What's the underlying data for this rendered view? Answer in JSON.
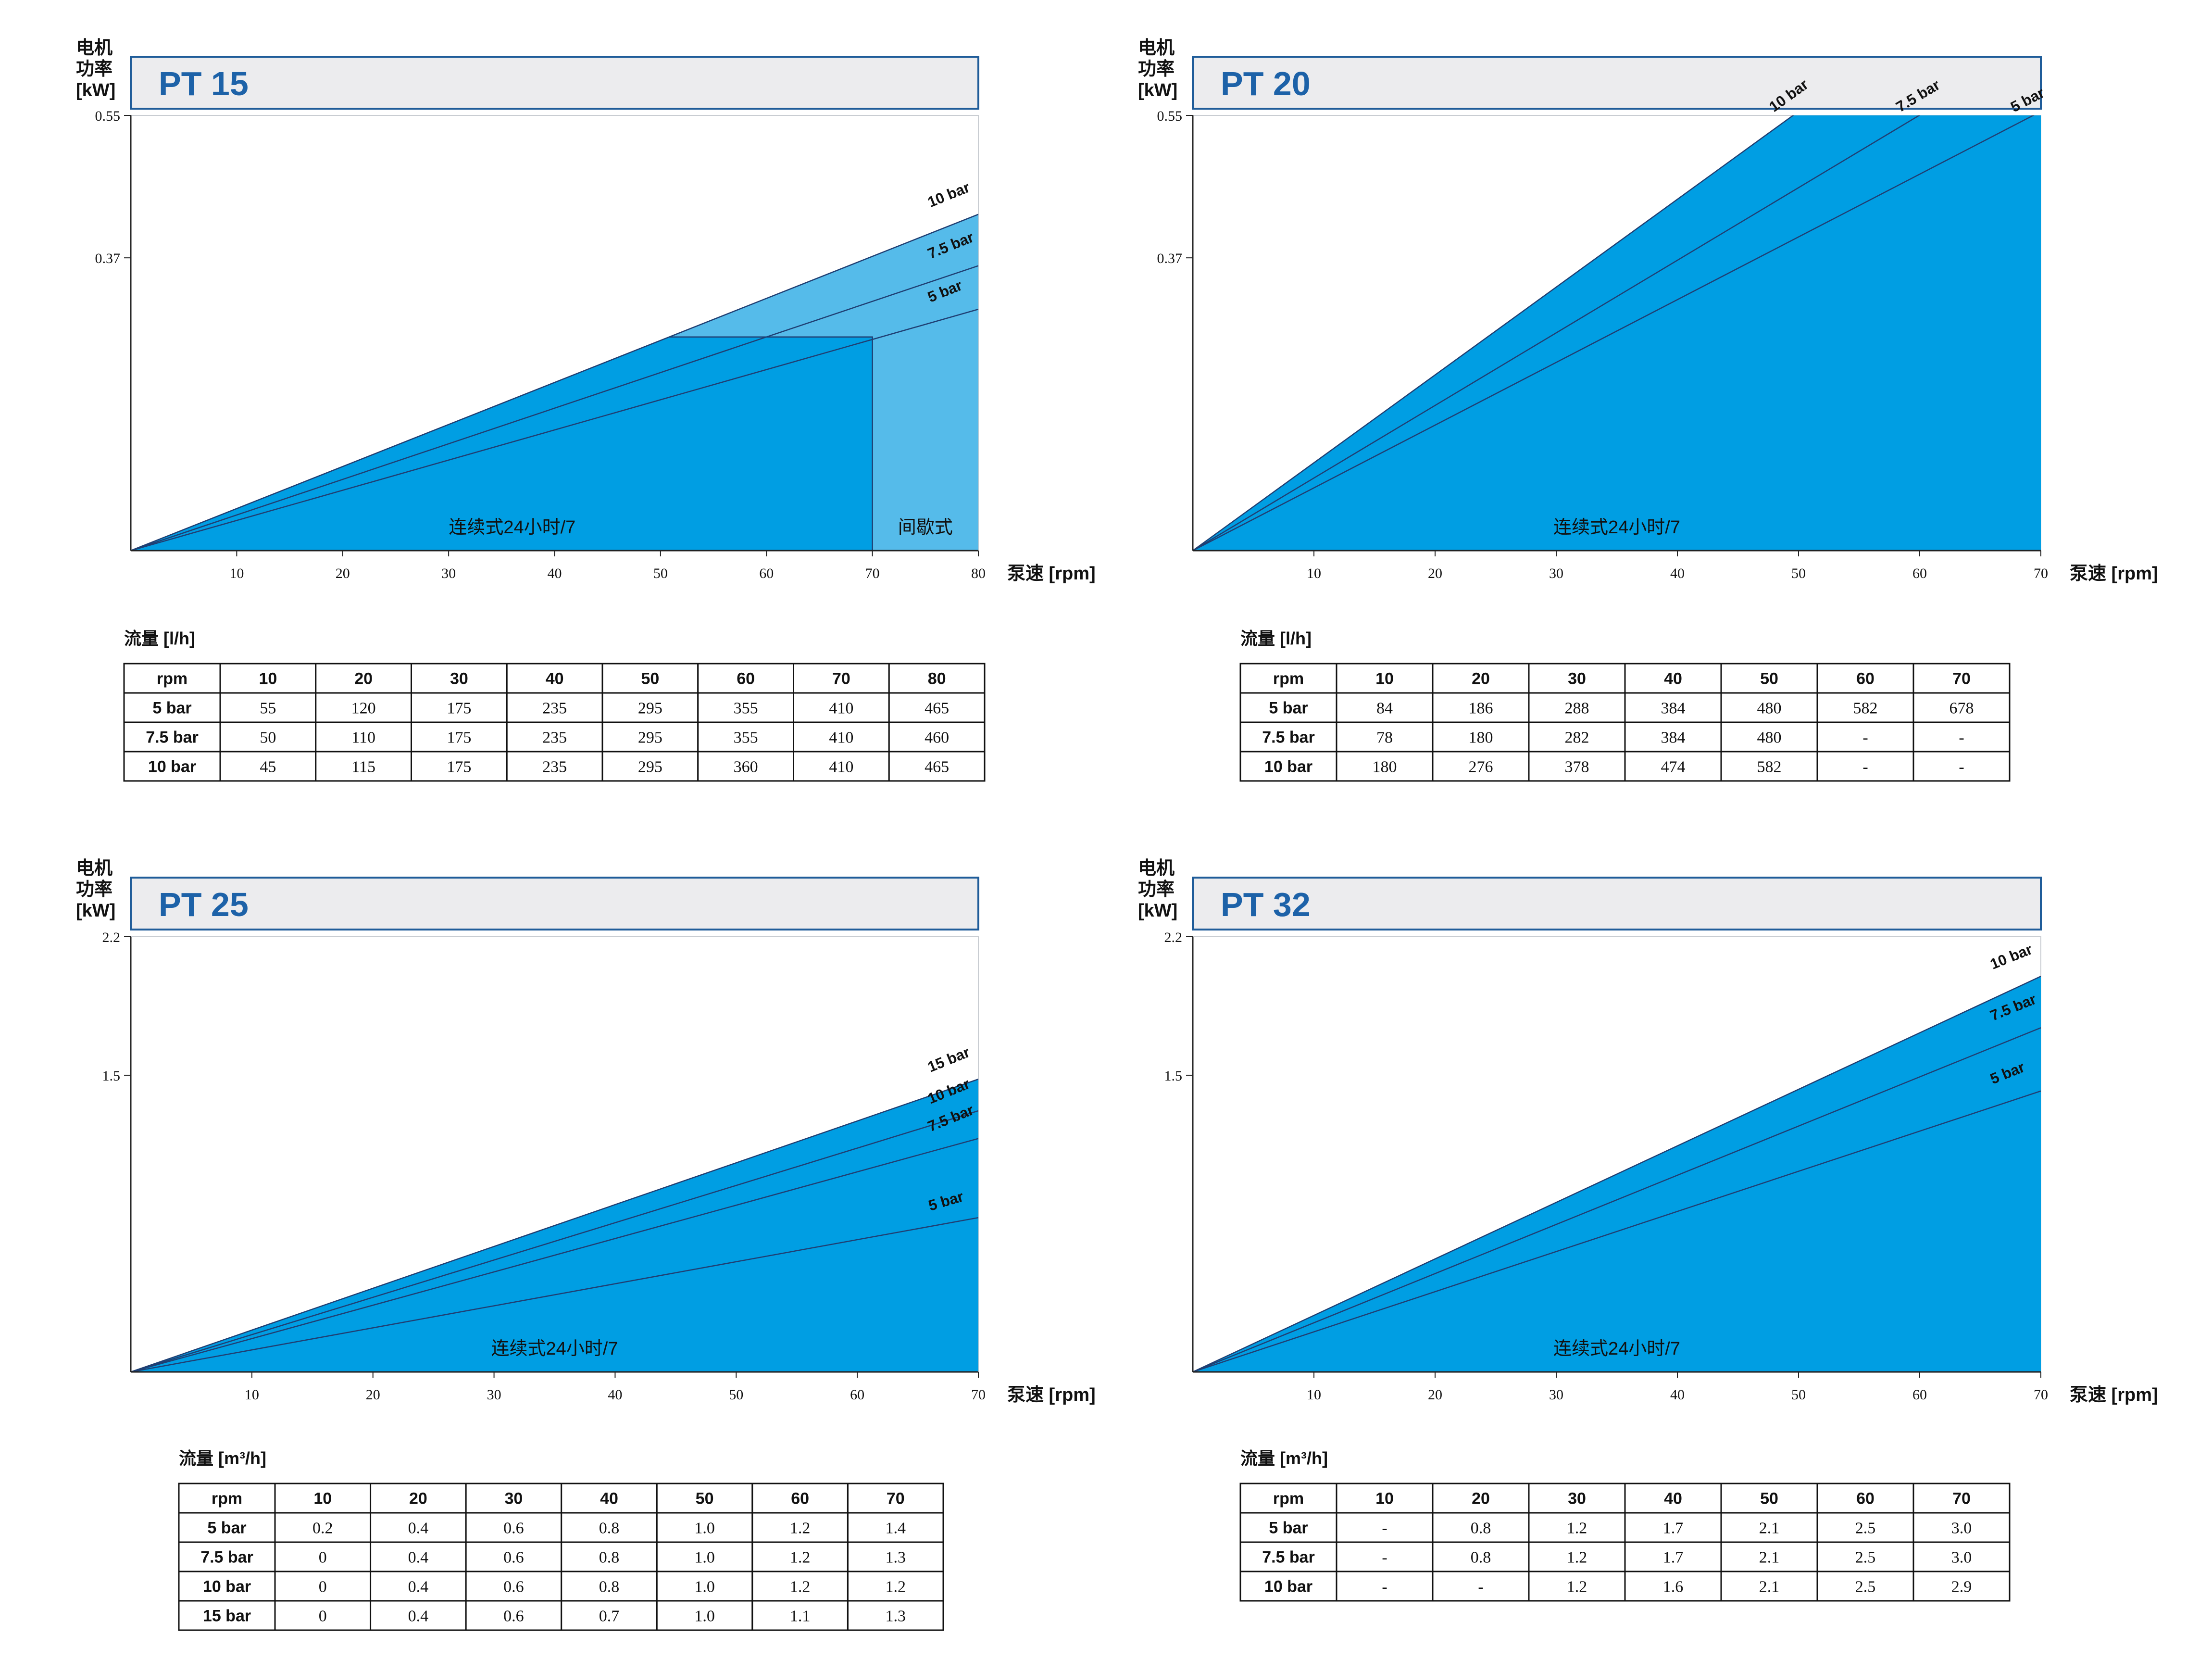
{
  "colors": {
    "fill_main": "#009ee3",
    "fill_light": "#55bbea",
    "line": "#1f3f73",
    "title_border": "#1f5c99",
    "title_text": "#1d62a8",
    "title_bg": "#ececee"
  },
  "chart_data": [
    {
      "type": "area",
      "title": "PT 15",
      "ylabel": "电机\n功率\n[kW]",
      "xlabel": "泵速 [rpm]",
      "xlim": [
        0,
        80
      ],
      "ylim": [
        0,
        0.55
      ],
      "xticks": [
        "10",
        "20",
        "30",
        "40",
        "50",
        "60",
        "70",
        "80"
      ],
      "yticks": [
        "0.37",
        "0.55"
      ],
      "yticks_values": [
        0.37,
        0.55
      ],
      "series": [
        {
          "name": "10 bar",
          "x": [
            0,
            80
          ],
          "y": [
            0,
            0.425
          ]
        },
        {
          "name": "7.5 bar",
          "x": [
            0,
            80
          ],
          "y": [
            0,
            0.36
          ]
        },
        {
          "name": "5 bar",
          "x": [
            0,
            80
          ],
          "y": [
            0,
            0.305
          ]
        }
      ],
      "continuous_limit": {
        "x": 70,
        "y": 0.27
      },
      "zones": [
        "连续式24小时/7",
        "间歇式"
      ],
      "table": {
        "title": "流量 [l/h]",
        "header": [
          "rpm",
          "10",
          "20",
          "30",
          "40",
          "50",
          "60",
          "70",
          "80"
        ],
        "rows": [
          [
            "5 bar",
            "55",
            "120",
            "175",
            "235",
            "295",
            "355",
            "410",
            "465"
          ],
          [
            "7.5 bar",
            "50",
            "110",
            "175",
            "235",
            "295",
            "355",
            "410",
            "460"
          ],
          [
            "10 bar",
            "45",
            "115",
            "175",
            "235",
            "295",
            "360",
            "410",
            "465"
          ]
        ]
      }
    },
    {
      "type": "area",
      "title": "PT 20",
      "ylabel": "电机\n功率\n[kW]",
      "xlabel": "泵速 [rpm]",
      "xlim": [
        0,
        70
      ],
      "ylim": [
        0,
        0.55
      ],
      "xticks": [
        "10",
        "20",
        "30",
        "40",
        "50",
        "60",
        "70"
      ],
      "yticks": [
        "0.37",
        "0.55"
      ],
      "yticks_values": [
        0.37,
        0.55
      ],
      "series": [
        {
          "name": "10 bar",
          "x": [
            0,
            50
          ],
          "y": [
            0,
            0.555
          ]
        },
        {
          "name": "7.5 bar",
          "x": [
            0,
            60.5
          ],
          "y": [
            0,
            0.555
          ]
        },
        {
          "name": "5 bar",
          "x": [
            0,
            70
          ],
          "y": [
            0,
            0.555
          ]
        }
      ],
      "zones": [
        "连续式24小时/7"
      ],
      "table": {
        "title": "流量 [l/h]",
        "header": [
          "rpm",
          "10",
          "20",
          "30",
          "40",
          "50",
          "60",
          "70"
        ],
        "rows": [
          [
            "5 bar",
            "84",
            "186",
            "288",
            "384",
            "480",
            "582",
            "678"
          ],
          [
            "7.5 bar",
            "78",
            "180",
            "282",
            "384",
            "480",
            "-",
            "-"
          ],
          [
            "10 bar",
            "180",
            "276",
            "378",
            "474",
            "582",
            "-",
            "-"
          ]
        ]
      }
    },
    {
      "type": "area",
      "title": "PT 25",
      "ylabel": "电机\n功率\n[kW]",
      "xlabel": "泵速 [rpm]",
      "xlim": [
        0,
        70
      ],
      "ylim": [
        0,
        2.2
      ],
      "xticks": [
        "10",
        "20",
        "30",
        "40",
        "50",
        "60",
        "70"
      ],
      "yticks": [
        "1.5",
        "2.2"
      ],
      "yticks_values": [
        1.5,
        2.2
      ],
      "series": [
        {
          "name": "15 bar",
          "x": [
            0,
            70
          ],
          "y": [
            0,
            1.48
          ]
        },
        {
          "name": "10 bar",
          "x": [
            0,
            70
          ],
          "y": [
            0,
            1.32
          ]
        },
        {
          "name": "7.5 bar",
          "x": [
            0,
            70
          ],
          "y": [
            0,
            1.18
          ]
        },
        {
          "name": "5 bar",
          "x": [
            0,
            70
          ],
          "y": [
            0,
            0.78
          ]
        }
      ],
      "zones": [
        "连续式24小时/7"
      ],
      "table": {
        "title": "流量 [m³/h]",
        "header": [
          "rpm",
          "10",
          "20",
          "30",
          "40",
          "50",
          "60",
          "70"
        ],
        "rows": [
          [
            "5 bar",
            "0.2",
            "0.4",
            "0.6",
            "0.8",
            "1.0",
            "1.2",
            "1.4"
          ],
          [
            "7.5 bar",
            "0",
            "0.4",
            "0.6",
            "0.8",
            "1.0",
            "1.2",
            "1.3"
          ],
          [
            "10 bar",
            "0",
            "0.4",
            "0.6",
            "0.8",
            "1.0",
            "1.2",
            "1.2"
          ],
          [
            "15 bar",
            "0",
            "0.4",
            "0.6",
            "0.7",
            "1.0",
            "1.1",
            "1.3"
          ]
        ]
      }
    },
    {
      "type": "area",
      "title": "PT 32",
      "ylabel": "电机\n功率\n[kW]",
      "xlabel": "泵速 [rpm]",
      "xlim": [
        0,
        70
      ],
      "ylim": [
        0,
        2.2
      ],
      "xticks": [
        "10",
        "20",
        "30",
        "40",
        "50",
        "60",
        "70"
      ],
      "yticks": [
        "1.5",
        "2.2"
      ],
      "yticks_values": [
        1.5,
        2.2
      ],
      "series": [
        {
          "name": "10 bar",
          "x": [
            0,
            70
          ],
          "y": [
            0,
            2.0
          ]
        },
        {
          "name": "7.5 bar",
          "x": [
            0,
            70
          ],
          "y": [
            0,
            1.74
          ]
        },
        {
          "name": "5 bar",
          "x": [
            0,
            70
          ],
          "y": [
            0,
            1.42
          ]
        }
      ],
      "zones": [
        "连续式24小时/7"
      ],
      "table": {
        "title": "流量 [m³/h]",
        "header": [
          "rpm",
          "10",
          "20",
          "30",
          "40",
          "50",
          "60",
          "70"
        ],
        "rows": [
          [
            "5 bar",
            "-",
            "0.8",
            "1.2",
            "1.7",
            "2.1",
            "2.5",
            "3.0"
          ],
          [
            "7.5 bar",
            "-",
            "0.8",
            "1.2",
            "1.7",
            "2.1",
            "2.5",
            "3.0"
          ],
          [
            "10 bar",
            "-",
            "-",
            "1.2",
            "1.6",
            "2.1",
            "2.5",
            "2.9"
          ]
        ]
      }
    }
  ]
}
